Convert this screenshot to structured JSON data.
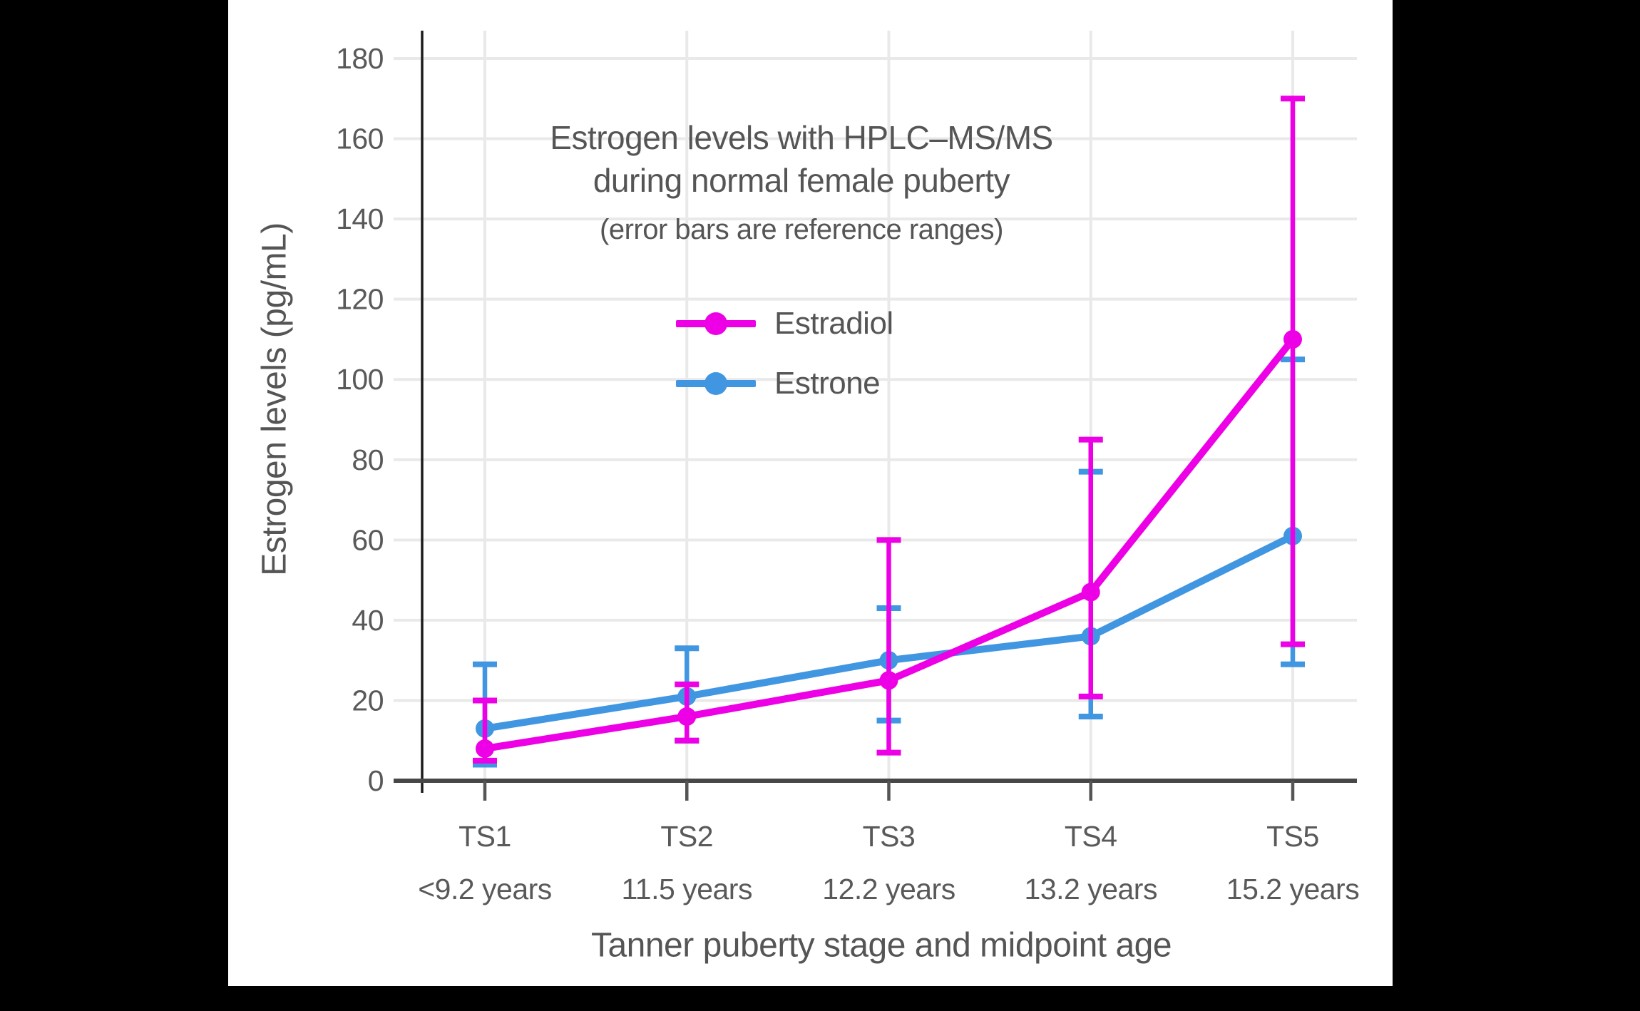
{
  "chart_data": {
    "type": "line",
    "title_line1": "Estrogen levels with HPLC–MS/MS",
    "title_line2": "during normal female puberty",
    "subtitle": "(error bars are reference ranges)",
    "ylabel": "Estrogen levels (pg/mL)",
    "xlabel": "Tanner puberty stage and midpoint age",
    "categories": [
      "TS1",
      "TS2",
      "TS3",
      "TS4",
      "TS5"
    ],
    "category_sublabels": [
      "<9.2 years",
      "11.5 years",
      "12.2 years",
      "13.2 years",
      "15.2 years"
    ],
    "yticks": [
      0,
      20,
      40,
      60,
      80,
      100,
      120,
      140,
      160,
      180
    ],
    "ylim": [
      0,
      180
    ],
    "grid": true,
    "legend_position": "upper-left-inside",
    "error_bar_meaning": "reference ranges",
    "series": [
      {
        "name": "Estradiol",
        "color": "#ED00E5",
        "values": [
          8,
          16,
          25,
          47,
          110
        ],
        "err_low": [
          5,
          10,
          7,
          21,
          34
        ],
        "err_high": [
          20,
          24,
          60,
          85,
          170
        ]
      },
      {
        "name": "Estrone",
        "color": "#4196E1",
        "values": [
          13,
          21,
          30,
          36,
          61
        ],
        "err_low": [
          4,
          10,
          15,
          16,
          29
        ],
        "err_high": [
          29,
          33,
          43,
          77,
          105
        ]
      }
    ],
    "colors": {
      "background": "#000000",
      "plot_background": "#ffffff",
      "grid": "#e9e9e9",
      "x_axis_line": "#474747",
      "y_axis_line": "#1c1c1c",
      "tick": "#555555",
      "text": "#595959"
    }
  }
}
